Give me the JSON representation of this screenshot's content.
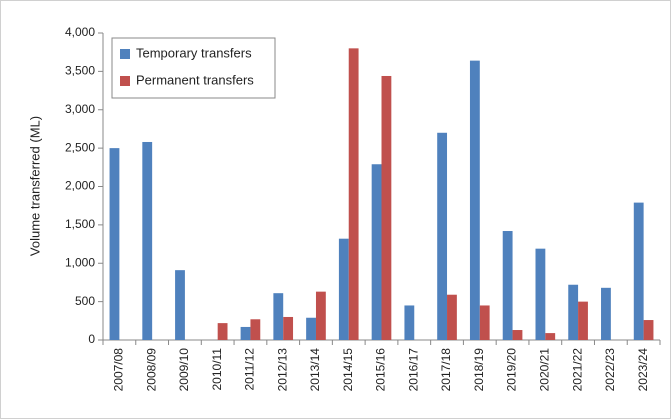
{
  "chart_data": {
    "type": "bar",
    "y_label": "Volume transferred (ML)",
    "categories": [
      "2007/08",
      "2008/09",
      "2009/10",
      "2010/11",
      "2011/12",
      "2012/13",
      "2013/14",
      "2014/15",
      "2015/16",
      "2016/17",
      "2017/18",
      "2018/19",
      "2019/20",
      "2020/21",
      "2021/22",
      "2022/23",
      "2023/24"
    ],
    "series": [
      {
        "name": "Temporary transfers",
        "color": "#4f81bd",
        "values": [
          2500,
          2580,
          910,
          0,
          170,
          610,
          290,
          1320,
          2290,
          450,
          2700,
          3640,
          1420,
          1190,
          720,
          680,
          1790
        ]
      },
      {
        "name": "Permanent transfers",
        "color": "#c0504d",
        "values": [
          0,
          0,
          0,
          220,
          270,
          300,
          630,
          3800,
          3440,
          0,
          590,
          450,
          130,
          90,
          500,
          0,
          260
        ]
      }
    ],
    "ylim": [
      0,
      4000
    ],
    "yticks": [
      0,
      500,
      {
        "value": 1000,
        "label": "1,000"
      },
      {
        "value": 1500,
        "label": "1,500"
      },
      {
        "value": 2000,
        "label": "2,000"
      },
      {
        "value": 2500,
        "label": "2,500"
      },
      {
        "value": 3000,
        "label": "3,000"
      },
      {
        "value": 3500,
        "label": "3,500"
      },
      {
        "value": 4000,
        "label": "4,000"
      }
    ],
    "legend": "upper left"
  }
}
